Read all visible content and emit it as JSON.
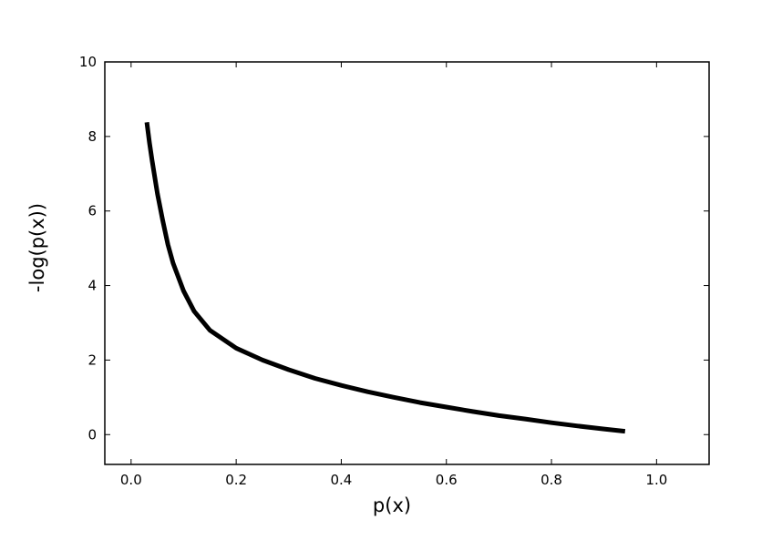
{
  "chart_data": {
    "type": "line",
    "title": "",
    "xlabel": "p(x)",
    "ylabel": "-log(p(x))",
    "xlim": [
      -0.05,
      1.1
    ],
    "ylim": [
      -0.8,
      10
    ],
    "xticks": [
      0.0,
      0.2,
      0.4,
      0.6,
      0.8,
      1.0
    ],
    "xtick_labels": [
      "0.0",
      "0.2",
      "0.4",
      "0.6",
      "0.8",
      "1.0"
    ],
    "yticks": [
      0,
      2,
      4,
      6,
      8,
      10
    ],
    "ytick_labels": [
      "0",
      "2",
      "4",
      "6",
      "8",
      "10"
    ],
    "grid": false,
    "legend": "none",
    "series": [
      {
        "color": "#000000",
        "x": [
          0.03,
          0.035,
          0.04,
          0.05,
          0.06,
          0.07,
          0.08,
          0.1,
          0.12,
          0.15,
          0.2,
          0.25,
          0.3,
          0.35,
          0.4,
          0.45,
          0.5,
          0.55,
          0.6,
          0.65,
          0.7,
          0.75,
          0.8,
          0.85,
          0.9,
          0.94
        ],
        "y": [
          8.38,
          7.83,
          7.35,
          6.47,
          5.76,
          5.1,
          4.6,
          3.85,
          3.31,
          2.8,
          2.32,
          2.0,
          1.74,
          1.51,
          1.32,
          1.15,
          1.0,
          0.86,
          0.74,
          0.62,
          0.51,
          0.42,
          0.32,
          0.23,
          0.15,
          0.09
        ]
      }
    ]
  }
}
